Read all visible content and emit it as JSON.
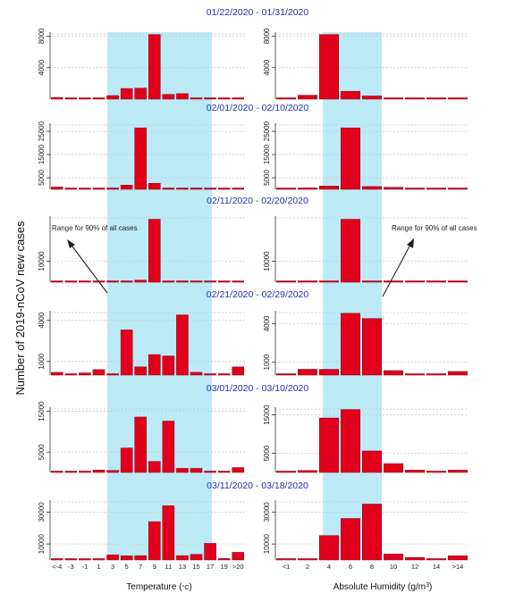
{
  "ylabel": "Number of 2019-nCoV new cases",
  "left_xlabel_pre": "Temperature (",
  "left_xlabel_unit": "°C",
  "left_xlabel_post": ")",
  "right_xlabel_pre": "Absolute Humidity (g/m",
  "right_xlabel_sup": "3",
  "right_xlabel_post": ")",
  "annotation_left": "Range for 90% of all cases",
  "annotation_right": "Range for 90% of all cases",
  "colors": {
    "bar": "#e0001b",
    "bar_edge": "#8a0010",
    "band": "#bdeaf7",
    "title": "#2233aa",
    "grid": "#c8c8c8"
  },
  "chart_data": [
    {
      "type": "bar",
      "panel": "temperature",
      "xlabel": "Temperature (°C)",
      "categories": [
        "<-4",
        "-3",
        "-1",
        "1",
        "3",
        "5",
        "7",
        "9",
        "11",
        "13",
        "15",
        "17",
        "19",
        ">20"
      ],
      "highlight_range": [
        "3",
        "17"
      ],
      "periods": [
        {
          "title": "01/22/2020 - 01/31/2020",
          "ticks": [
            4000,
            8000
          ],
          "ylim": [
            0,
            8500
          ],
          "values": [
            220,
            60,
            100,
            170,
            450,
            1350,
            1400,
            8200,
            600,
            700,
            80,
            60,
            20,
            50
          ]
        },
        {
          "title": "02/01/2020 - 02/10/2020",
          "ticks": [
            5000,
            15000,
            25000
          ],
          "ylim": [
            0,
            28500
          ],
          "values": [
            1000,
            500,
            400,
            200,
            300,
            1800,
            26500,
            2600,
            400,
            300,
            600,
            50,
            30,
            50
          ]
        },
        {
          "title": "02/11/2020 - 02/20/2020",
          "ticks": [
            10000
          ],
          "ylim": [
            0,
            31500
          ],
          "values": [
            300,
            200,
            150,
            100,
            300,
            500,
            1000,
            30000,
            400,
            200,
            100,
            50,
            20,
            30
          ]
        },
        {
          "title": "02/21/2020 - 02/29/2020",
          "ticks": [
            1000,
            4000
          ],
          "ylim": [
            0,
            4700
          ],
          "values": [
            200,
            80,
            160,
            400,
            100,
            3300,
            600,
            1500,
            1400,
            4400,
            200,
            100,
            90,
            600
          ]
        },
        {
          "title": "03/01/2020 - 03/10/2020",
          "ticks": [
            5000,
            15000
          ],
          "ylim": [
            0,
            16000
          ],
          "values": [
            150,
            200,
            250,
            600,
            500,
            6000,
            13600,
            2700,
            12600,
            1000,
            1000,
            300,
            200,
            1200
          ]
        },
        {
          "title": "03/11/2020 - 03/18/2020",
          "ticks": [
            10000,
            30000
          ],
          "ylim": [
            0,
            37500
          ],
          "values": [
            200,
            300,
            500,
            800,
            3200,
            2600,
            2700,
            24000,
            34000,
            2700,
            3500,
            10400,
            900,
            4800
          ]
        }
      ]
    },
    {
      "type": "bar",
      "panel": "absolute_humidity",
      "xlabel": "Absolute Humidity (g/m3)",
      "categories": [
        "<1",
        "2",
        "4",
        "6",
        "8",
        "10",
        "12",
        "14",
        ">14"
      ],
      "highlight_range": [
        "4",
        "8"
      ],
      "periods": [
        {
          "title": "01/22/2020 - 01/31/2020",
          "ticks": [
            4000,
            8000
          ],
          "ylim": [
            0,
            8500
          ],
          "values": [
            100,
            500,
            8200,
            1000,
            400,
            100,
            50,
            40,
            30
          ]
        },
        {
          "title": "02/01/2020 - 02/10/2020",
          "ticks": [
            5000,
            15000,
            25000
          ],
          "ylim": [
            0,
            28500
          ],
          "values": [
            500,
            600,
            1400,
            26500,
            1200,
            900,
            200,
            100,
            300
          ]
        },
        {
          "title": "02/11/2020 - 02/20/2020",
          "ticks": [
            10000
          ],
          "ylim": [
            0,
            31500
          ],
          "values": [
            300,
            400,
            500,
            30000,
            400,
            200,
            100,
            50,
            100
          ]
        },
        {
          "title": "02/21/2020 - 02/29/2020",
          "ticks": [
            1000,
            4000
          ],
          "ylim": [
            0,
            5000
          ],
          "values": [
            50,
            450,
            450,
            4800,
            4400,
            350,
            100,
            100,
            280
          ]
        },
        {
          "title": "03/01/2020 - 03/10/2020",
          "ticks": [
            5000,
            15000
          ],
          "ylim": [
            0,
            17000
          ],
          "values": [
            200,
            500,
            14200,
            16400,
            5600,
            2300,
            600,
            300,
            600
          ]
        },
        {
          "title": "03/11/2020 - 03/18/2020",
          "ticks": [
            10000,
            30000
          ],
          "ylim": [
            0,
            37500
          ],
          "values": [
            200,
            500,
            15300,
            26000,
            35000,
            3700,
            1500,
            300,
            2600
          ]
        }
      ]
    }
  ]
}
